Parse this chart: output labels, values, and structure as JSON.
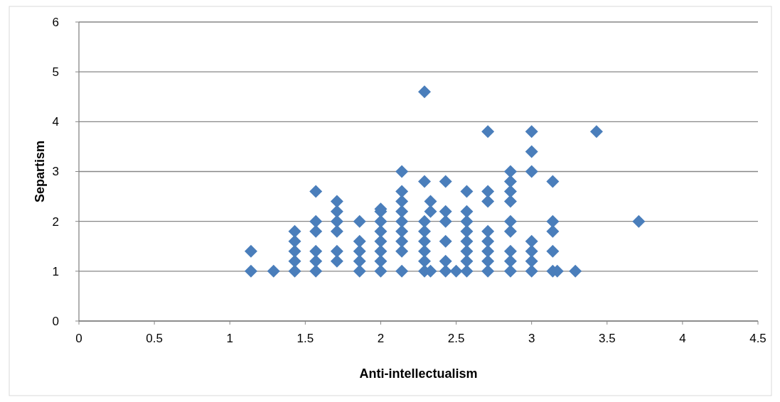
{
  "chart_data": {
    "type": "scatter",
    "xlabel": "Anti-intellectualism",
    "ylabel": "Separtism",
    "xlim": [
      0,
      4.5
    ],
    "xticks": [
      0,
      0.5,
      1,
      1.5,
      2,
      2.5,
      3,
      3.5,
      4,
      4.5
    ],
    "ylim": [
      0,
      6
    ],
    "yticks": [
      0,
      1,
      2,
      3,
      4,
      5,
      6
    ],
    "grid": "y",
    "marker": "diamond",
    "series": [
      {
        "color": "#4a7ebb",
        "x": [
          1.14,
          1.14,
          1.29,
          1.43,
          1.43,
          1.43,
          1.43,
          1.43,
          1.57,
          1.57,
          1.57,
          1.57,
          1.57,
          1.57,
          1.71,
          1.71,
          1.71,
          1.71,
          1.71,
          1.71,
          1.86,
          1.86,
          1.86,
          1.86,
          1.86,
          2,
          2,
          2,
          2,
          2,
          2,
          2,
          2,
          2.14,
          2.14,
          2.14,
          2.14,
          2.14,
          2.14,
          2.14,
          2.14,
          2.14,
          2.29,
          2.29,
          2.29,
          2.29,
          2.29,
          2.29,
          2.29,
          2.29,
          2.33,
          2.33,
          2.33,
          2.43,
          2.43,
          2.43,
          2.43,
          2.43,
          2.43,
          2.5,
          2.57,
          2.57,
          2.57,
          2.57,
          2.57,
          2.57,
          2.57,
          2.57,
          2.71,
          2.71,
          2.71,
          2.71,
          2.71,
          2.71,
          2.71,
          2.71,
          2.86,
          2.86,
          2.86,
          2.86,
          2.86,
          2.86,
          2.86,
          2.86,
          2.86,
          3,
          3,
          3,
          3,
          3,
          3,
          3,
          3.14,
          3.14,
          3.14,
          3.14,
          3.14,
          3.17,
          3.29,
          3.43,
          3.71
        ],
        "values": [
          1,
          1.4,
          1,
          1,
          1.2,
          1.4,
          1.6,
          1.8,
          1,
          1.2,
          1.4,
          1.8,
          2,
          2.6,
          1.2,
          1.4,
          1.8,
          2,
          2.2,
          2.4,
          1,
          1.2,
          1.4,
          1.6,
          2,
          1,
          1.2,
          1.4,
          1.6,
          1.8,
          2,
          2.2,
          2.25,
          1,
          1.4,
          1.6,
          1.8,
          2,
          2.2,
          2.4,
          2.6,
          3,
          1,
          1.2,
          1.4,
          1.6,
          1.8,
          2,
          2.8,
          4.6,
          1,
          2.2,
          2.4,
          1,
          1.2,
          1.6,
          2,
          2.2,
          2.8,
          1,
          1,
          1.2,
          1.4,
          1.6,
          1.8,
          2,
          2.2,
          2.6,
          1,
          1.2,
          1.4,
          1.6,
          1.8,
          2.4,
          2.6,
          3.8,
          1,
          1.2,
          1.4,
          1.8,
          2,
          2.4,
          2.6,
          2.8,
          3,
          1,
          1.2,
          1.4,
          1.6,
          3,
          3.4,
          3.8,
          1,
          1.4,
          1.8,
          2,
          2.8,
          1,
          1,
          3.8,
          2
        ]
      }
    ]
  }
}
